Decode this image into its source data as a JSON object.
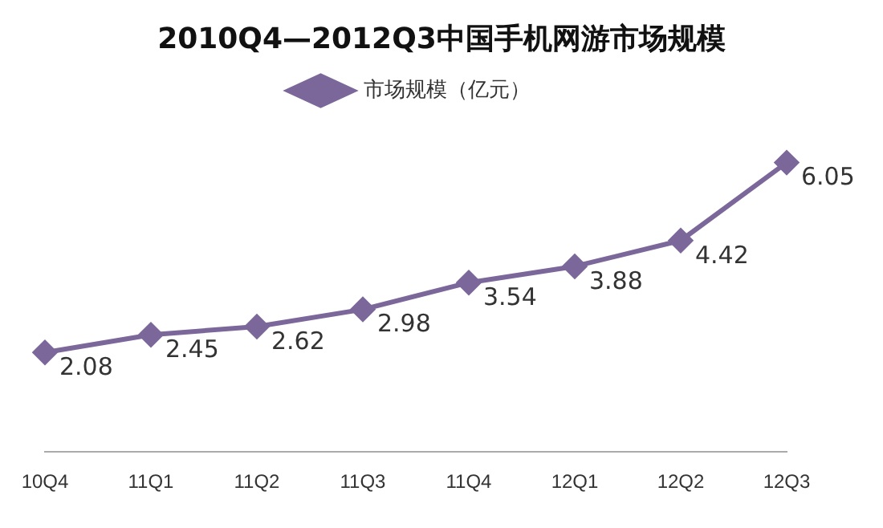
{
  "chart_data": {
    "type": "line",
    "title": "2010Q4—2012Q3中国手机网游市场规模",
    "categories": [
      "10Q4",
      "11Q1",
      "11Q2",
      "11Q3",
      "11Q4",
      "12Q1",
      "12Q2",
      "12Q3"
    ],
    "series": [
      {
        "name": "市场规模（亿元）",
        "color": "#7b679a",
        "values": [
          2.08,
          2.45,
          2.62,
          2.98,
          3.54,
          3.88,
          4.42,
          6.05
        ]
      }
    ],
    "tick_labels": "x",
    "grid": false,
    "legend": "top",
    "marker": "diamond",
    "line_style": "solid",
    "data_labels": true
  }
}
